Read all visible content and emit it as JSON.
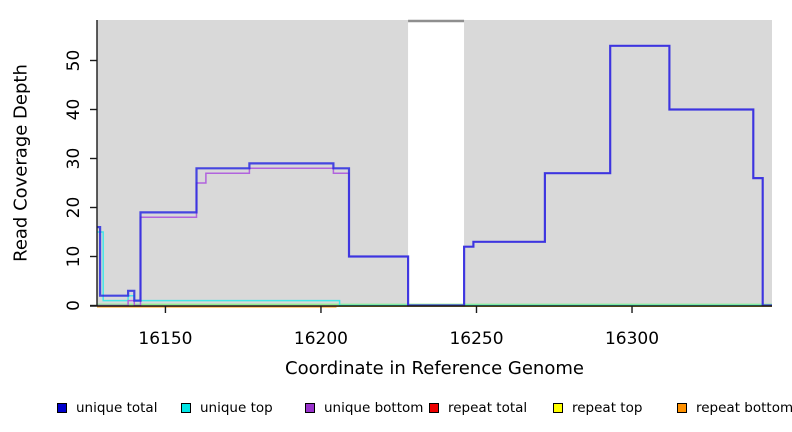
{
  "figure": {
    "background": "#ffffff",
    "plot_background": "#d9d9d9",
    "axis_color": "#1a1a1a"
  },
  "chart_data": {
    "type": "line",
    "subtype": "step",
    "title": "",
    "xlabel": "Coordinate in Reference Genome",
    "ylabel": "Read Coverage Depth",
    "xlim": [
      16128,
      16345
    ],
    "ylim": [
      0,
      58
    ],
    "x_ticks": [
      16150,
      16200,
      16250,
      16300
    ],
    "y_ticks": [
      0,
      10,
      20,
      30,
      40,
      50
    ],
    "grid": false,
    "legend_position": "bottom",
    "gap_region": {
      "x_start": 16228,
      "x_end": 16246,
      "fill": "#ffffff",
      "top_edge_color": "#8f8f8f"
    },
    "baseline_blend_color": "#90ee90",
    "series": [
      {
        "name": "unique total",
        "color": "#0000cd",
        "line": "#2a2ae0",
        "steps": [
          [
            16128,
            16
          ],
          [
            16129,
            2
          ],
          [
            16138,
            3
          ],
          [
            16140,
            1
          ],
          [
            16142,
            19
          ],
          [
            16160,
            28
          ],
          [
            16177,
            29
          ],
          [
            16204,
            28
          ],
          [
            16209,
            10
          ],
          [
            16228,
            0
          ],
          [
            16246,
            12
          ],
          [
            16249,
            13
          ],
          [
            16272,
            27
          ],
          [
            16293,
            53
          ],
          [
            16312,
            40
          ],
          [
            16339,
            26
          ],
          [
            16342,
            0
          ],
          [
            16345,
            0
          ]
        ]
      },
      {
        "name": "unique top",
        "color": "#00e5e5",
        "line": "#45e6e6",
        "steps": [
          [
            16128,
            15
          ],
          [
            16130,
            1
          ],
          [
            16138,
            2
          ],
          [
            16140,
            1
          ],
          [
            16206,
            0
          ],
          [
            16345,
            0
          ]
        ]
      },
      {
        "name": "unique bottom",
        "color": "#9932cc",
        "line": "#b163dd",
        "steps": [
          [
            16128,
            0
          ],
          [
            16138,
            1
          ],
          [
            16140,
            0
          ],
          [
            16142,
            18
          ],
          [
            16160,
            25
          ],
          [
            16163,
            27
          ],
          [
            16177,
            28
          ],
          [
            16204,
            27
          ],
          [
            16209,
            10
          ],
          [
            16228,
            0
          ],
          [
            16246,
            12
          ],
          [
            16249,
            13
          ],
          [
            16272,
            27
          ],
          [
            16293,
            53
          ],
          [
            16312,
            40
          ],
          [
            16339,
            26
          ],
          [
            16342,
            0
          ],
          [
            16345,
            0
          ]
        ]
      },
      {
        "name": "repeat total",
        "color": "#ee0000",
        "line": "#ee0000",
        "steps": [
          [
            16128,
            0
          ],
          [
            16345,
            0
          ]
        ]
      },
      {
        "name": "repeat top",
        "color": "#ffff00",
        "line": "#f2f200",
        "steps": [
          [
            16128,
            0
          ],
          [
            16345,
            0
          ]
        ]
      },
      {
        "name": "repeat bottom",
        "color": "#ff9100",
        "line": "#ff9100",
        "steps": [
          [
            16128,
            0
          ],
          [
            16205,
            0
          ]
        ]
      }
    ]
  }
}
